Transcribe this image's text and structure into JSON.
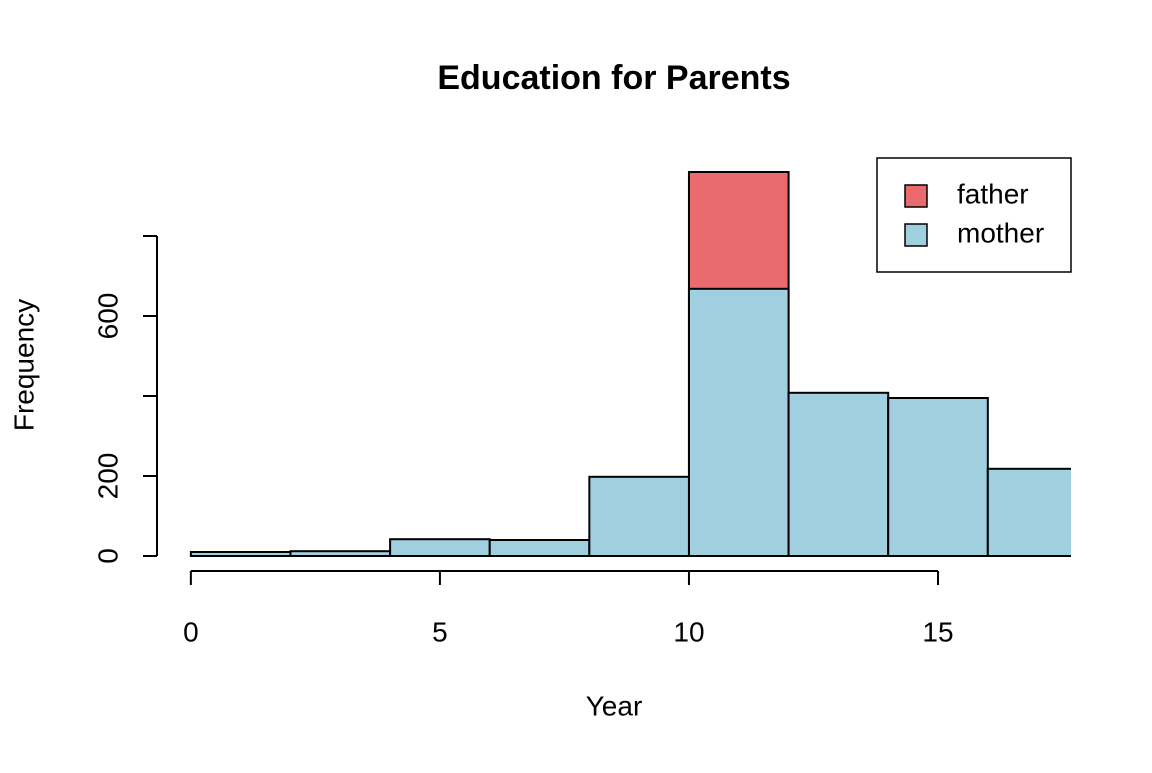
{
  "chart_data": {
    "type": "histogram",
    "title": "Education for Parents",
    "x_label": "Year",
    "y_label": "Frequency",
    "bins": [
      0,
      2,
      4,
      6,
      8,
      10,
      12,
      14,
      16,
      18
    ],
    "series": [
      {
        "name": "father",
        "color": "#eb6a6e",
        "values": [
          null,
          null,
          null,
          null,
          null,
          960,
          null,
          null,
          null
        ]
      },
      {
        "name": "mother",
        "color": "#a0cfe0",
        "values": [
          10,
          12,
          42,
          40,
          198,
          668,
          408,
          395,
          218
        ]
      }
    ],
    "xlim": [
      -0.68,
      17.67
    ],
    "ylim": [
      0,
      960
    ],
    "xticks": [
      0,
      5,
      10,
      15
    ],
    "yticks": [
      0,
      200,
      600
    ],
    "ytick_marks": [
      0,
      200,
      400,
      600,
      800
    ],
    "legend": "top-right"
  }
}
